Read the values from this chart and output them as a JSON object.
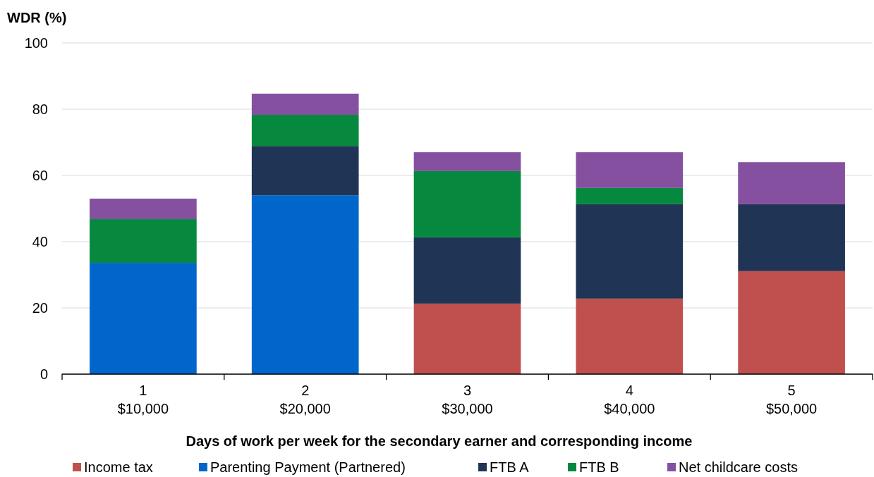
{
  "chart_data": {
    "type": "bar",
    "stacked": true,
    "ylabel": "WDR (%)",
    "xlabel": "Days of work per week for the secondary earner and corresponding income",
    "categories": [
      "1\n$10,000",
      "2\n$20,000",
      "3\n$30,000",
      "4\n$40,000",
      "5\n$50,000"
    ],
    "series": [
      {
        "name": "Income tax",
        "color": "#c0504d",
        "values": [
          null,
          null,
          21.3,
          22.8,
          31.1
        ]
      },
      {
        "name": "Parenting Payment (Partnered)",
        "color": "#0066cc",
        "values": [
          33.6,
          54.0,
          null,
          null,
          null
        ]
      },
      {
        "name": "FTB A",
        "color": "#203556",
        "values": [
          null,
          14.9,
          20.0,
          28.5,
          20.2
        ]
      },
      {
        "name": "FTB B",
        "color": "#06893f",
        "values": [
          13.2,
          9.4,
          20.0,
          4.9,
          null
        ]
      },
      {
        "name": "Net childcare costs",
        "color": "#8650a0",
        "values": [
          6.2,
          6.4,
          5.7,
          10.8,
          12.7
        ]
      }
    ],
    "ylim": [
      0,
      100
    ],
    "yticks": [
      0,
      20,
      40,
      60,
      80,
      100
    ],
    "grid": "y",
    "legend": "bottom"
  }
}
